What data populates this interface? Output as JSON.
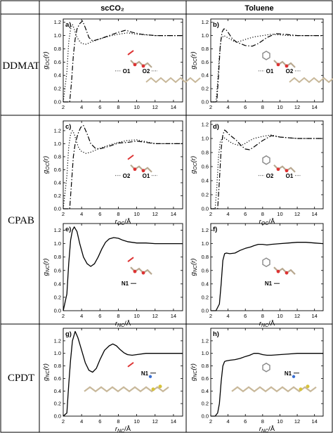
{
  "columns": [
    "scCO₂",
    "Toluene"
  ],
  "rows": [
    "DDMAT",
    "CPAB",
    "CPDT"
  ],
  "chart_data": [
    {
      "type": "line",
      "panel": "a)",
      "row": "DDMAT",
      "column": "scCO₂",
      "ylabel": "gOC(r)",
      "xlabel": "rOC/Å",
      "xlabel_shown": false,
      "xlim": [
        2,
        15
      ],
      "ylim": [
        0,
        1.25
      ],
      "xticks": [
        2,
        4,
        6,
        8,
        10,
        12,
        14
      ],
      "yticks": [
        0.0,
        0.2,
        0.4,
        0.6,
        0.8,
        1.0,
        1.2
      ],
      "annotations": [
        "O1",
        "O2"
      ],
      "series": [
        {
          "style": "dotted",
          "x": [
            2.0,
            2.4,
            2.6,
            2.8,
            3.0,
            3.2,
            3.4,
            3.7,
            4.0,
            4.5,
            5.0,
            6.0,
            7.0,
            8.0,
            9.0,
            10.0,
            12.0,
            15.0
          ],
          "y": [
            0.0,
            0.45,
            0.9,
            1.1,
            1.17,
            1.1,
            1.0,
            0.93,
            0.88,
            0.87,
            0.9,
            0.95,
            0.99,
            1.02,
            1.04,
            1.02,
            1.0,
            1.0
          ]
        },
        {
          "style": "dashdot",
          "x": [
            2.0,
            2.7,
            2.9,
            3.1,
            3.3,
            3.5,
            3.8,
            4.1,
            4.4,
            4.8,
            5.2,
            6.0,
            7.0,
            8.0,
            8.8,
            9.5,
            10.5,
            12.0,
            15.0
          ],
          "y": [
            0.0,
            0.0,
            0.3,
            0.7,
            0.95,
            1.1,
            1.18,
            1.22,
            1.12,
            0.97,
            0.92,
            0.95,
            1.0,
            1.05,
            1.08,
            1.05,
            1.02,
            1.0,
            1.0
          ]
        }
      ]
    },
    {
      "type": "line",
      "panel": "b)",
      "row": "DDMAT",
      "column": "Toluene",
      "ylabel": "gOC(r)",
      "xlabel": "rOC/Å",
      "xlabel_shown": false,
      "xlim": [
        2,
        15
      ],
      "ylim": [
        0,
        1.25
      ],
      "xticks": [
        2,
        4,
        6,
        8,
        10,
        12,
        14
      ],
      "yticks": [
        0.0,
        0.2,
        0.4,
        0.6,
        0.8,
        1.0,
        1.2
      ],
      "annotations": [
        "O1",
        "O2"
      ],
      "series": [
        {
          "style": "dotted",
          "x": [
            2.0,
            2.6,
            2.8,
            3.0,
            3.2,
            3.5,
            3.8,
            4.2,
            4.6,
            5.0,
            5.5,
            6.2,
            7.0,
            8.0,
            9.0,
            10.0,
            11.0,
            12.0,
            15.0
          ],
          "y": [
            0.0,
            0.0,
            0.3,
            0.7,
            0.95,
            1.0,
            0.98,
            0.95,
            0.92,
            0.9,
            0.92,
            0.95,
            0.98,
            1.0,
            1.02,
            1.01,
            1.0,
            1.0,
            1.0
          ]
        },
        {
          "style": "dashdot",
          "x": [
            2.0,
            2.7,
            2.9,
            3.1,
            3.3,
            3.5,
            3.7,
            4.0,
            4.5,
            5.0,
            6.0,
            6.8,
            7.5,
            8.5,
            9.5,
            10.5,
            12.0,
            15.0
          ],
          "y": [
            0.0,
            0.0,
            0.4,
            0.85,
            1.05,
            1.1,
            1.1,
            1.05,
            0.95,
            0.9,
            0.85,
            0.84,
            0.88,
            0.97,
            1.03,
            1.02,
            1.0,
            1.0
          ]
        }
      ]
    },
    {
      "type": "line",
      "panel": "c)",
      "row": "CPAB",
      "column": "scCO₂",
      "ylabel": "gOC(r)",
      "xlabel": "rOC/Å",
      "xlim": [
        2,
        15
      ],
      "ylim": [
        0,
        1.35
      ],
      "xticks": [
        2,
        4,
        6,
        8,
        10,
        12,
        14
      ],
      "yticks": [
        0.0,
        0.2,
        0.4,
        0.6,
        0.8,
        1.0,
        1.2
      ],
      "annotations": [
        "O2",
        "O1"
      ],
      "series": [
        {
          "style": "dotted",
          "x": [
            2.0,
            2.4,
            2.6,
            2.8,
            3.0,
            3.2,
            3.4,
            3.7,
            4.0,
            4.5,
            5.0,
            6.0,
            7.0,
            8.0,
            9.0,
            10.0,
            11.0,
            12.0,
            15.0
          ],
          "y": [
            0.0,
            0.5,
            0.95,
            1.15,
            1.2,
            1.15,
            1.05,
            0.93,
            0.88,
            0.85,
            0.87,
            0.93,
            0.98,
            1.02,
            1.05,
            1.06,
            1.03,
            1.0,
            1.0
          ]
        },
        {
          "style": "dashdot",
          "x": [
            2.0,
            2.7,
            2.9,
            3.1,
            3.3,
            3.6,
            3.9,
            4.2,
            4.6,
            5.0,
            5.5,
            6.0,
            7.0,
            8.0,
            9.0,
            10.0,
            11.0,
            12.0,
            15.0
          ],
          "y": [
            0.0,
            0.0,
            0.4,
            0.8,
            1.0,
            1.15,
            1.25,
            1.28,
            1.15,
            1.0,
            0.93,
            0.92,
            0.96,
            1.01,
            1.02,
            1.04,
            1.02,
            1.0,
            1.0
          ]
        }
      ]
    },
    {
      "type": "line",
      "panel": "d)",
      "row": "CPAB",
      "column": "Toluene",
      "ylabel": "gOC(r)",
      "xlabel": "rOC/Å",
      "xlim": [
        2,
        15
      ],
      "ylim": [
        0,
        1.25
      ],
      "xticks": [
        2,
        4,
        6,
        8,
        10,
        12,
        14
      ],
      "yticks": [
        0.0,
        0.2,
        0.4,
        0.6,
        0.8,
        1.0,
        1.2
      ],
      "annotations": [
        "O2",
        "O1"
      ],
      "series": [
        {
          "style": "dotted",
          "x": [
            2.0,
            2.5,
            2.7,
            2.9,
            3.1,
            3.4,
            3.7,
            4.0,
            4.5,
            5.0,
            5.5,
            6.0,
            6.5,
            7.0,
            8.0,
            9.0,
            10.0,
            12.0,
            15.0
          ],
          "y": [
            0.0,
            0.0,
            0.3,
            0.75,
            0.95,
            1.02,
            1.0,
            0.97,
            0.93,
            0.91,
            0.9,
            0.93,
            0.97,
            1.0,
            1.03,
            1.05,
            1.02,
            1.0,
            1.0
          ]
        },
        {
          "style": "dashdot",
          "x": [
            2.0,
            2.8,
            3.0,
            3.2,
            3.4,
            3.6,
            3.8,
            4.1,
            4.5,
            5.0,
            5.5,
            6.0,
            6.5,
            7.0,
            8.0,
            9.0,
            10.0,
            12.0,
            15.0
          ],
          "y": [
            0.0,
            0.0,
            0.4,
            0.85,
            1.05,
            1.12,
            1.1,
            1.06,
            1.02,
            0.97,
            0.9,
            0.85,
            0.84,
            0.88,
            0.97,
            1.04,
            1.02,
            1.0,
            1.0
          ]
        }
      ]
    },
    {
      "type": "line",
      "panel": "e)",
      "row": "CPAB",
      "column": "scCO₂",
      "ylabel": "gNC(r)",
      "xlabel": "rNC/Å",
      "xlim": [
        2,
        15
      ],
      "ylim": [
        0,
        1.3
      ],
      "xticks": [
        2,
        4,
        6,
        8,
        10,
        12,
        14
      ],
      "yticks": [
        0.0,
        0.2,
        0.4,
        0.6,
        0.8,
        1.0,
        1.2
      ],
      "annotations": [
        "N1"
      ],
      "series": [
        {
          "style": "solid",
          "x": [
            2.0,
            2.4,
            2.6,
            2.8,
            3.0,
            3.2,
            3.5,
            3.8,
            4.2,
            4.6,
            5.0,
            5.4,
            5.8,
            6.2,
            6.6,
            7.0,
            7.5,
            8.0,
            8.5,
            9.0,
            10.0,
            11.0,
            12.0,
            13.0,
            14.0,
            15.0
          ],
          "y": [
            0.0,
            0.25,
            0.7,
            1.05,
            1.2,
            1.25,
            1.18,
            1.0,
            0.8,
            0.7,
            0.66,
            0.7,
            0.8,
            0.92,
            1.02,
            1.07,
            1.09,
            1.08,
            1.05,
            1.03,
            1.01,
            1.01,
            1.0,
            1.0,
            1.0,
            1.0
          ]
        }
      ]
    },
    {
      "type": "line",
      "panel": "f)",
      "row": "CPAB",
      "column": "Toluene",
      "ylabel": "gNC(r)",
      "xlabel": "rNC/Å",
      "xlim": [
        2,
        15
      ],
      "ylim": [
        0,
        1.3
      ],
      "xticks": [
        2,
        4,
        6,
        8,
        10,
        12,
        14
      ],
      "yticks": [
        0.0,
        0.2,
        0.4,
        0.6,
        0.8,
        1.0,
        1.2
      ],
      "annotations": [
        "N1"
      ],
      "series": [
        {
          "style": "solid",
          "x": [
            2.0,
            2.6,
            3.0,
            3.2,
            3.4,
            3.6,
            3.8,
            4.2,
            4.8,
            5.4,
            6.0,
            6.6,
            7.0,
            7.5,
            8.0,
            8.5,
            9.0,
            10.0,
            11.0,
            12.0,
            13.0,
            14.0,
            15.0
          ],
          "y": [
            0.0,
            0.0,
            0.1,
            0.4,
            0.75,
            0.85,
            0.86,
            0.85,
            0.86,
            0.9,
            0.93,
            0.95,
            0.97,
            0.99,
            0.99,
            0.98,
            0.99,
            1.0,
            1.01,
            1.02,
            1.02,
            1.01,
            1.0
          ]
        }
      ]
    },
    {
      "type": "line",
      "panel": "g)",
      "row": "CPDT",
      "column": "scCO₂",
      "ylabel": "gNC(r)",
      "xlabel": "rNC/Å",
      "xlim": [
        2,
        15
      ],
      "ylim": [
        0,
        1.4
      ],
      "xticks": [
        2,
        4,
        6,
        8,
        10,
        12,
        14
      ],
      "yticks": [
        0.0,
        0.2,
        0.4,
        0.6,
        0.8,
        1.0,
        1.2
      ],
      "annotations": [
        "N1"
      ],
      "series": [
        {
          "style": "solid",
          "x": [
            2.0,
            2.4,
            2.6,
            2.8,
            3.0,
            3.3,
            3.6,
            4.0,
            4.4,
            4.8,
            5.2,
            5.6,
            6.0,
            6.5,
            7.0,
            7.4,
            7.8,
            8.2,
            8.6,
            9.0,
            9.5,
            10.0,
            11.0,
            12.0,
            13.0,
            14.0,
            15.0
          ],
          "y": [
            0.0,
            0.05,
            0.5,
            0.9,
            1.2,
            1.35,
            1.25,
            1.05,
            0.85,
            0.73,
            0.7,
            0.76,
            0.9,
            1.05,
            1.12,
            1.15,
            1.12,
            1.06,
            1.01,
            0.98,
            0.97,
            0.98,
            1.0,
            1.0,
            1.0,
            1.0,
            1.0
          ]
        }
      ]
    },
    {
      "type": "line",
      "panel": "h)",
      "row": "CPDT",
      "column": "Toluene",
      "ylabel": "gNC(r)",
      "xlabel": "rNC/Å",
      "xlim": [
        2,
        15
      ],
      "ylim": [
        0,
        1.4
      ],
      "xticks": [
        2,
        4,
        6,
        8,
        10,
        12,
        14
      ],
      "yticks": [
        0.0,
        0.2,
        0.4,
        0.6,
        0.8,
        1.0,
        1.2
      ],
      "annotations": [
        "N1"
      ],
      "series": [
        {
          "style": "solid",
          "x": [
            2.0,
            2.5,
            2.8,
            3.0,
            3.2,
            3.4,
            3.6,
            3.8,
            4.2,
            4.8,
            5.4,
            6.0,
            6.5,
            7.0,
            7.5,
            8.0,
            8.5,
            9.0,
            10.0,
            11.0,
            12.0,
            13.0,
            14.0,
            15.0
          ],
          "y": [
            0.0,
            0.0,
            0.05,
            0.2,
            0.55,
            0.8,
            0.87,
            0.88,
            0.89,
            0.9,
            0.92,
            0.95,
            0.97,
            1.0,
            1.0,
            0.98,
            0.97,
            0.97,
            0.98,
            0.99,
            1.0,
            1.0,
            1.0,
            1.0
          ]
        }
      ]
    }
  ]
}
